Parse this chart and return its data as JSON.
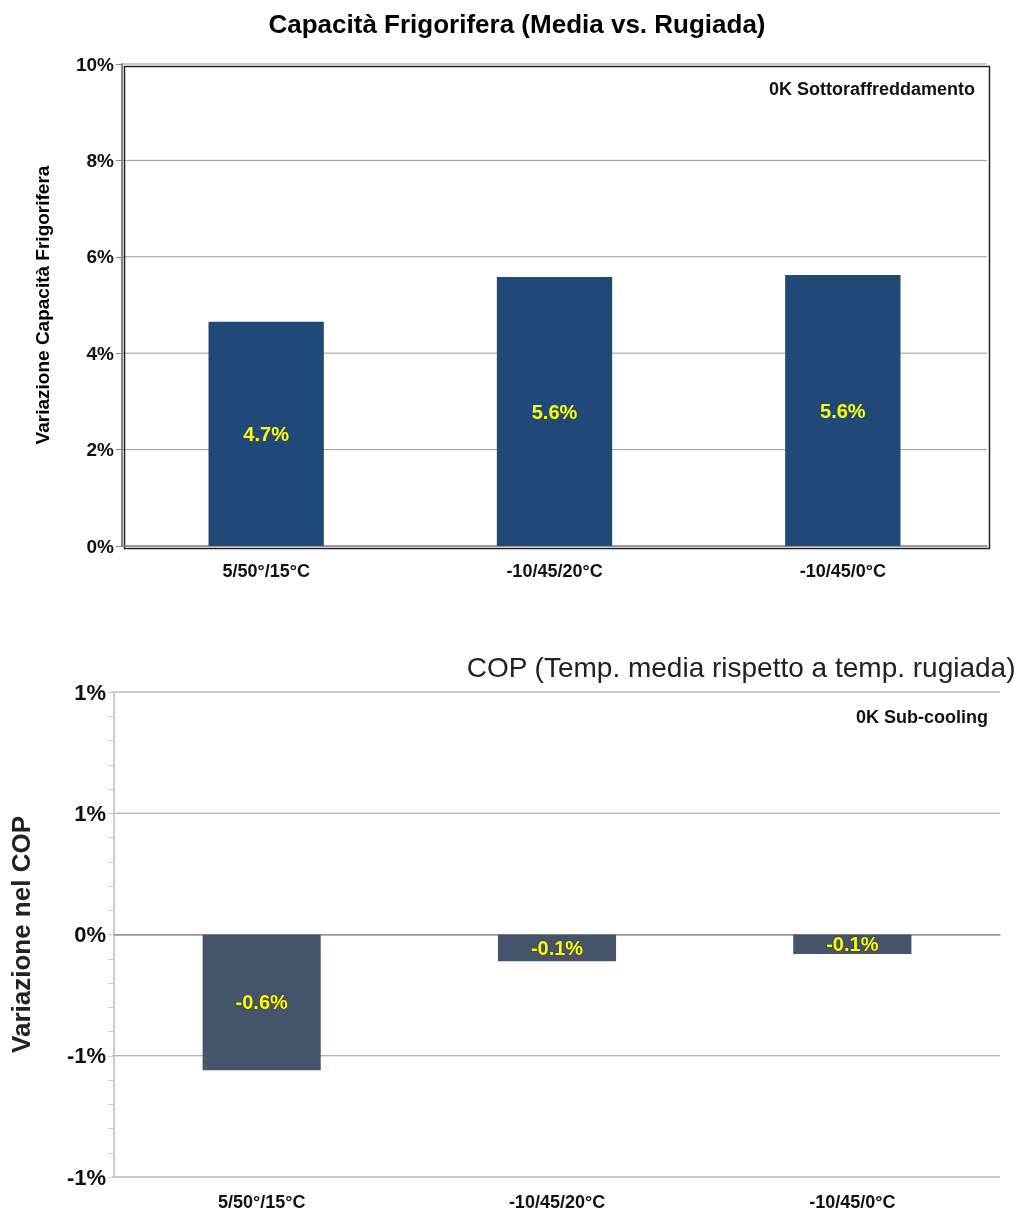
{
  "chart_data": [
    {
      "type": "bar",
      "title": "Capacità Frigorifera (Media vs. Rugiada)",
      "ylabel": "Variazione Capacità Frigorifera",
      "categories": [
        "5/50°/15°C",
        "-10/45/20°C",
        "-10/45/0°C"
      ],
      "values": [
        4.65,
        5.58,
        5.62
      ],
      "value_labels": [
        "4.7%",
        "5.6%",
        "5.6%"
      ],
      "color": "#204878",
      "ylim": [
        0,
        10
      ],
      "yticks": [
        {
          "value": 0,
          "label": "0%"
        },
        {
          "value": 2,
          "label": "2%"
        },
        {
          "value": 4,
          "label": "4%"
        },
        {
          "value": 6,
          "label": "6%"
        },
        {
          "value": 8,
          "label": "8%"
        },
        {
          "value": 10,
          "label": "10%"
        }
      ],
      "grid": "y",
      "annotations": [
        "0K Sottoraffreddamento"
      ]
    },
    {
      "type": "bar",
      "title": "COP (Temp. media rispetto a temp. rugiada)",
      "ylabel": "Variazione nel COP",
      "categories": [
        "5/50°/15°C",
        "-10/45/20°C",
        "-10/45/0°C"
      ],
      "values": [
        -0.56,
        -0.11,
        -0.08
      ],
      "value_labels": [
        "-0.6%",
        "-0.1%",
        "-0.1%"
      ],
      "color": "#44546a",
      "ylim": [
        -1,
        1
      ],
      "yticks": [
        {
          "value": -1,
          "label": "-1%"
        },
        {
          "value": -0.9,
          "label": null
        },
        {
          "value": -0.8,
          "label": null
        },
        {
          "value": -0.7,
          "label": null
        },
        {
          "value": -0.6,
          "label": null
        },
        {
          "value": -0.5,
          "label": "-1%"
        },
        {
          "value": -0.4,
          "label": null
        },
        {
          "value": -0.3,
          "label": null
        },
        {
          "value": -0.2,
          "label": null
        },
        {
          "value": -0.1,
          "label": null
        },
        {
          "value": 0,
          "label": "0%"
        },
        {
          "value": 0.1,
          "label": null
        },
        {
          "value": 0.2,
          "label": null
        },
        {
          "value": 0.3,
          "label": null
        },
        {
          "value": 0.4,
          "label": null
        },
        {
          "value": 0.5,
          "label": "1%"
        },
        {
          "value": 0.6,
          "label": null
        },
        {
          "value": 0.7,
          "label": null
        },
        {
          "value": 0.8,
          "label": null
        },
        {
          "value": 0.9,
          "label": null
        },
        {
          "value": 1,
          "label": "1%"
        }
      ],
      "grid": "y",
      "annotations": [
        "0K Sub-cooling"
      ]
    }
  ]
}
